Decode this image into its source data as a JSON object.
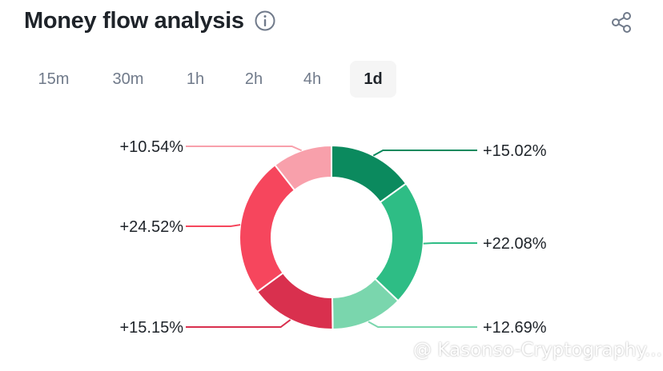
{
  "header": {
    "title": "Money flow analysis"
  },
  "icons": {
    "info": "info-icon",
    "share": "share-icon"
  },
  "tabs": [
    {
      "label": "15m",
      "active": false
    },
    {
      "label": "30m",
      "active": false
    },
    {
      "label": "1h",
      "active": false
    },
    {
      "label": "2h",
      "active": false
    },
    {
      "label": "4h",
      "active": false
    },
    {
      "label": "1d",
      "active": true
    }
  ],
  "watermark": {
    "text": "@ Kasonso-Cryptography..."
  },
  "colors": {
    "green_dark": "#0b8a5e",
    "green_mid": "#2ebd85",
    "green_light": "#7ad6ad",
    "red_dark": "#d9304e",
    "red_mid": "#f6465d",
    "red_light": "#f8a0ab"
  },
  "chart_data": {
    "type": "pie",
    "title": "",
    "slices": [
      {
        "label": "+15.02%",
        "value": 15.02,
        "color": "#0b8a5e"
      },
      {
        "label": "+22.08%",
        "value": 22.08,
        "color": "#2ebd85"
      },
      {
        "label": "+12.69%",
        "value": 12.69,
        "color": "#7ad6ad"
      },
      {
        "label": "+15.15%",
        "value": 15.15,
        "color": "#d9304e"
      },
      {
        "label": "+24.52%",
        "value": 24.52,
        "color": "#f6465d"
      },
      {
        "label": "+10.54%",
        "value": 10.54,
        "color": "#f8a0ab"
      }
    ],
    "donut": true
  }
}
